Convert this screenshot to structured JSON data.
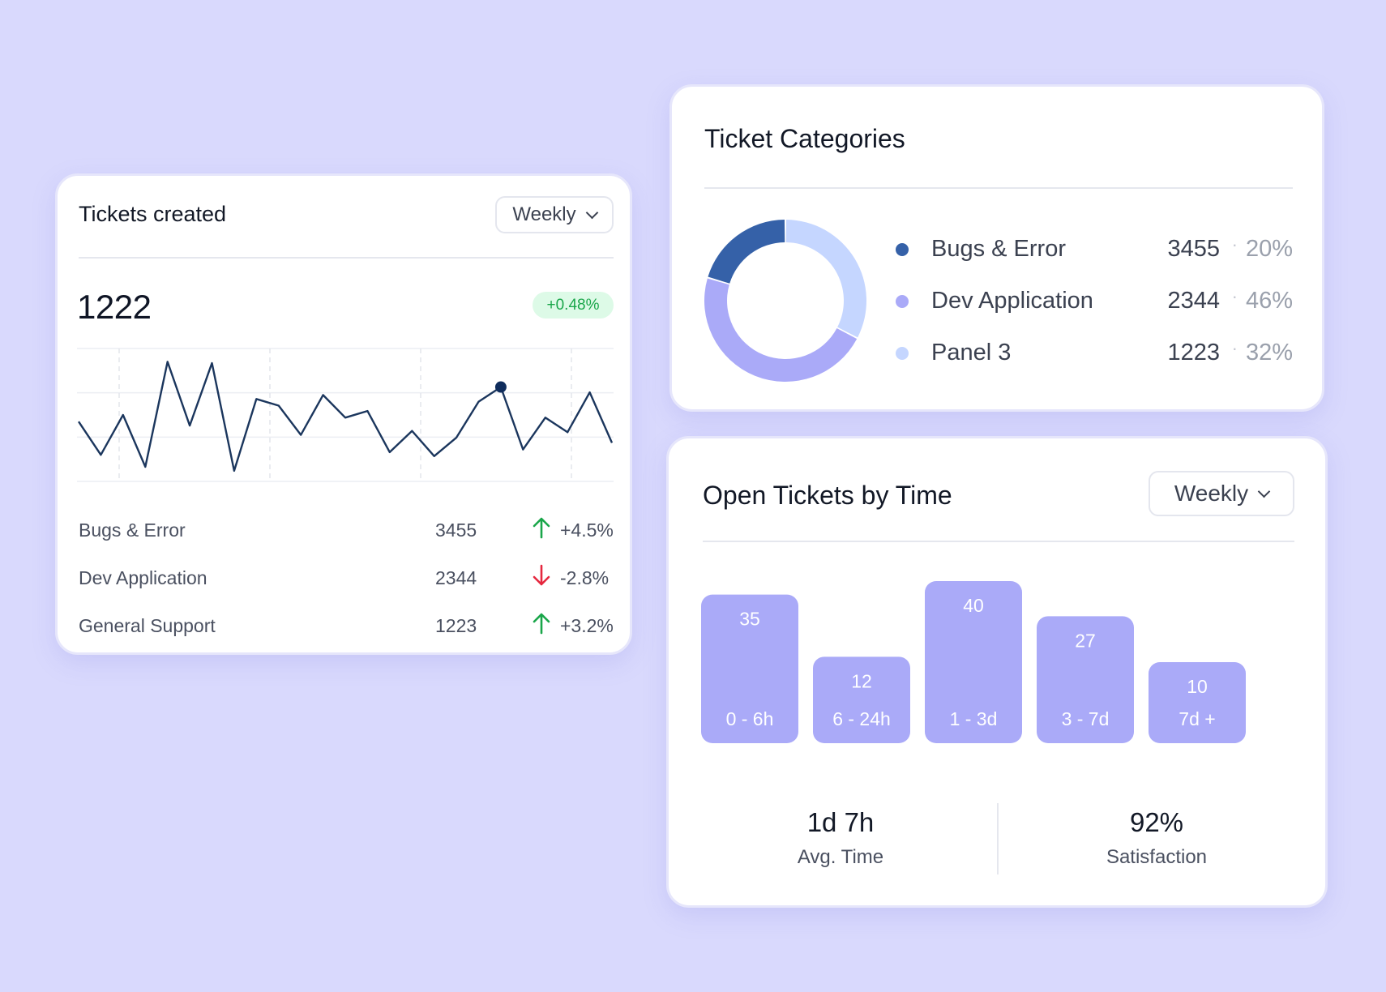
{
  "tickets_created": {
    "title": "Tickets created",
    "period": "Weekly",
    "total": "1222",
    "change_badge": "+0.48%",
    "stats": [
      {
        "label": "Bugs & Error",
        "value": "3455",
        "direction": "up",
        "change": "+4.5%"
      },
      {
        "label": "Dev Application",
        "value": "2344",
        "direction": "down",
        "change": "-2.8%"
      },
      {
        "label": "General Support",
        "value": "1223",
        "direction": "up",
        "change": "+3.2%"
      }
    ]
  },
  "ticket_categories": {
    "title": "Ticket Categories",
    "items": [
      {
        "name": "Bugs & Error",
        "value": "3455",
        "percent": "20%",
        "color": "#3561a8"
      },
      {
        "name": "Dev Application",
        "value": "2344",
        "percent": "46%",
        "color": "#aaaaf8"
      },
      {
        "name": "Panel 3",
        "value": "1223",
        "percent": "32%",
        "color": "#c5d6ff"
      }
    ]
  },
  "open_tickets": {
    "title": "Open Tickets by Time",
    "period": "Weekly",
    "metrics": [
      {
        "value": "1d 7h",
        "label": "Avg. Time"
      },
      {
        "value": "92%",
        "label": "Satisfaction"
      }
    ]
  },
  "colors": {
    "line": "#1b365d",
    "up": "#1aa64a",
    "down": "#e5283f",
    "bar": "#aaaaf8"
  },
  "chart_data": [
    {
      "type": "line",
      "title": "Tickets created",
      "x": [
        0,
        1,
        2,
        3,
        4,
        5,
        6,
        7,
        8,
        9,
        10,
        11,
        12,
        13,
        14,
        15,
        16,
        17,
        18,
        19,
        20,
        21,
        22,
        23,
        24
      ],
      "values": [
        45,
        20,
        50,
        11,
        90,
        42,
        89,
        8,
        62,
        57,
        35,
        65,
        48,
        53,
        22,
        38,
        19,
        33,
        60,
        71,
        24,
        48,
        37,
        67,
        29
      ],
      "highlight_index": 19,
      "ylim": [
        0,
        100
      ],
      "grid": true
    },
    {
      "type": "pie",
      "title": "Ticket Categories",
      "categories": [
        "Bugs & Error",
        "Dev Application",
        "Panel 3"
      ],
      "values": [
        20,
        46,
        32
      ]
    },
    {
      "type": "bar",
      "title": "Open Tickets by Time",
      "categories": [
        "0 - 6h",
        "6 - 24h",
        "1 - 3d",
        "3 - 7d",
        "7d +"
      ],
      "values": [
        35,
        12,
        40,
        27,
        10
      ]
    }
  ]
}
